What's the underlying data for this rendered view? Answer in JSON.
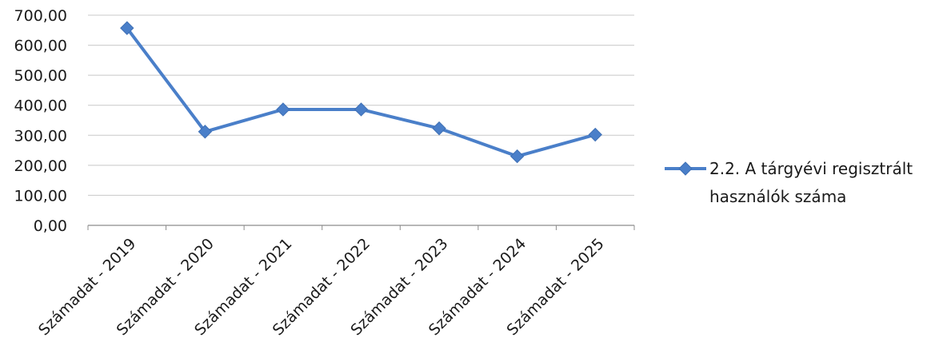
{
  "chart_data": {
    "type": "line",
    "categories": [
      "Számadat - 2019",
      "Számadat - 2020",
      "Számadat - 2021",
      "Számadat - 2022",
      "Számadat - 2023",
      "Számadat - 2024",
      "Számadat - 2025"
    ],
    "series": [
      {
        "name": "2.2. A tárgyévi regisztrált használók száma",
        "values": [
          657,
          312,
          386,
          386,
          323,
          230,
          302
        ],
        "color": "#4a7fc9"
      }
    ],
    "yticks": [
      "700,00",
      "600,00",
      "500,00",
      "400,00",
      "300,00",
      "200,00",
      "100,00",
      "0,00"
    ],
    "ylim": [
      0,
      700
    ],
    "grid": true,
    "legend_position": "right",
    "legend_lines": [
      "2.2. A tárgyévi regisztrált",
      "használók száma"
    ]
  }
}
